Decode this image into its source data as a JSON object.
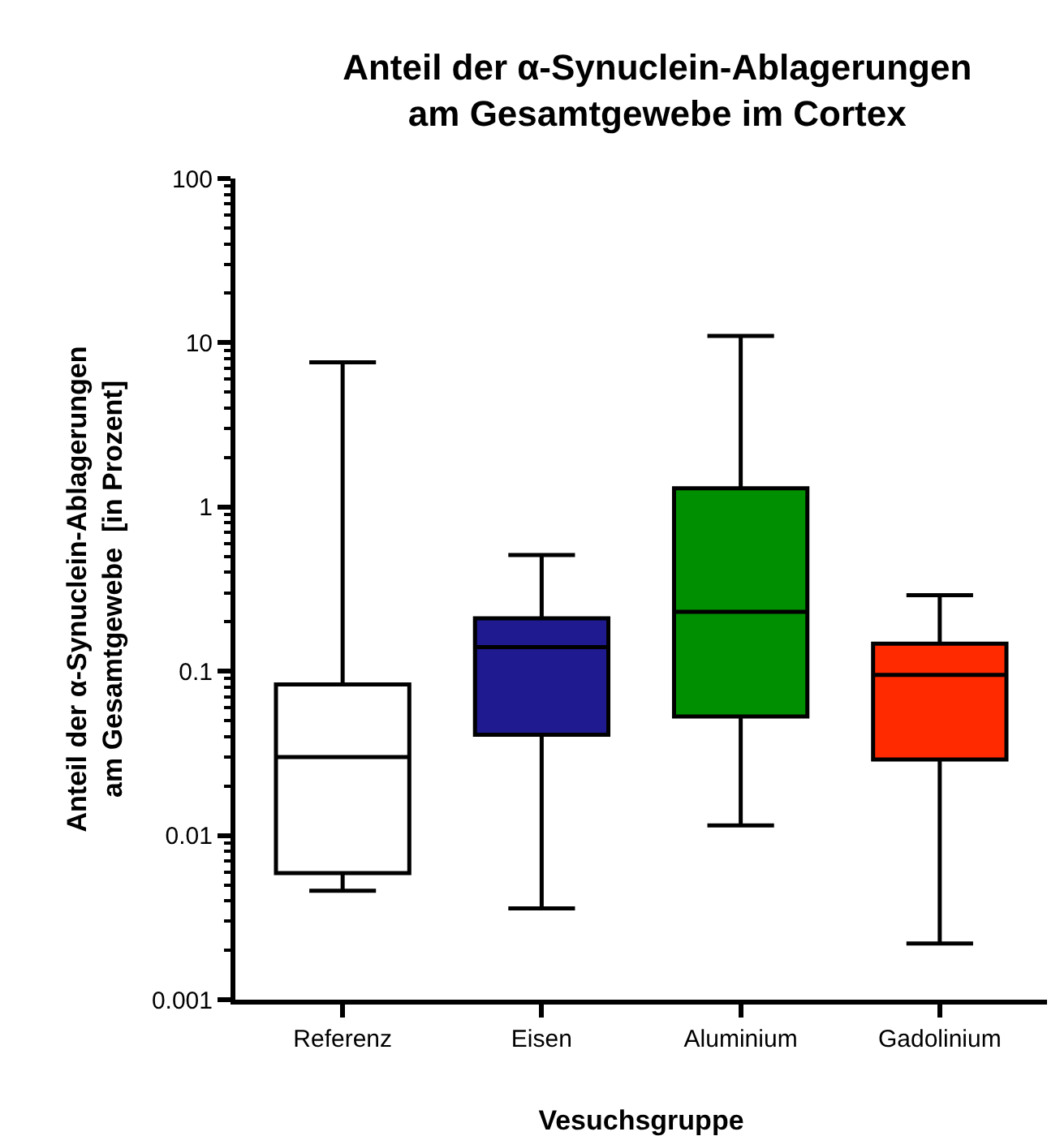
{
  "chart_data": {
    "type": "box",
    "title": "Anteil der α-Synuclein-Ablagerungen\nam Gesamtgewebe im Cortex",
    "xlabel": "Vesuchsgruppe",
    "ylabel": "Anteil der α-Synuclein-Ablagerungen\nam Gesamtgewebe  [in Prozent]",
    "categories": [
      "Referenz",
      "Eisen",
      "Aluminium",
      "Gadolinium"
    ],
    "colors": [
      "#ffffff",
      "#1f1a8f",
      "#008f00",
      "#ff2a00"
    ],
    "boxes": [
      {
        "low": 0.0046,
        "q1": 0.0059,
        "median": 0.03,
        "q3": 0.083,
        "high": 7.6
      },
      {
        "low": 0.0036,
        "q1": 0.041,
        "median": 0.14,
        "q3": 0.21,
        "high": 0.51
      },
      {
        "low": 0.0115,
        "q1": 0.053,
        "median": 0.23,
        "q3": 1.3,
        "high": 11
      },
      {
        "low": 0.0022,
        "q1": 0.029,
        "median": 0.095,
        "q3": 0.147,
        "high": 0.29
      }
    ],
    "log": true,
    "ylim": [
      0.001,
      100
    ],
    "yticks": [
      0.001,
      0.01,
      0.1,
      1,
      10,
      100
    ],
    "grid": false,
    "legend": false
  }
}
